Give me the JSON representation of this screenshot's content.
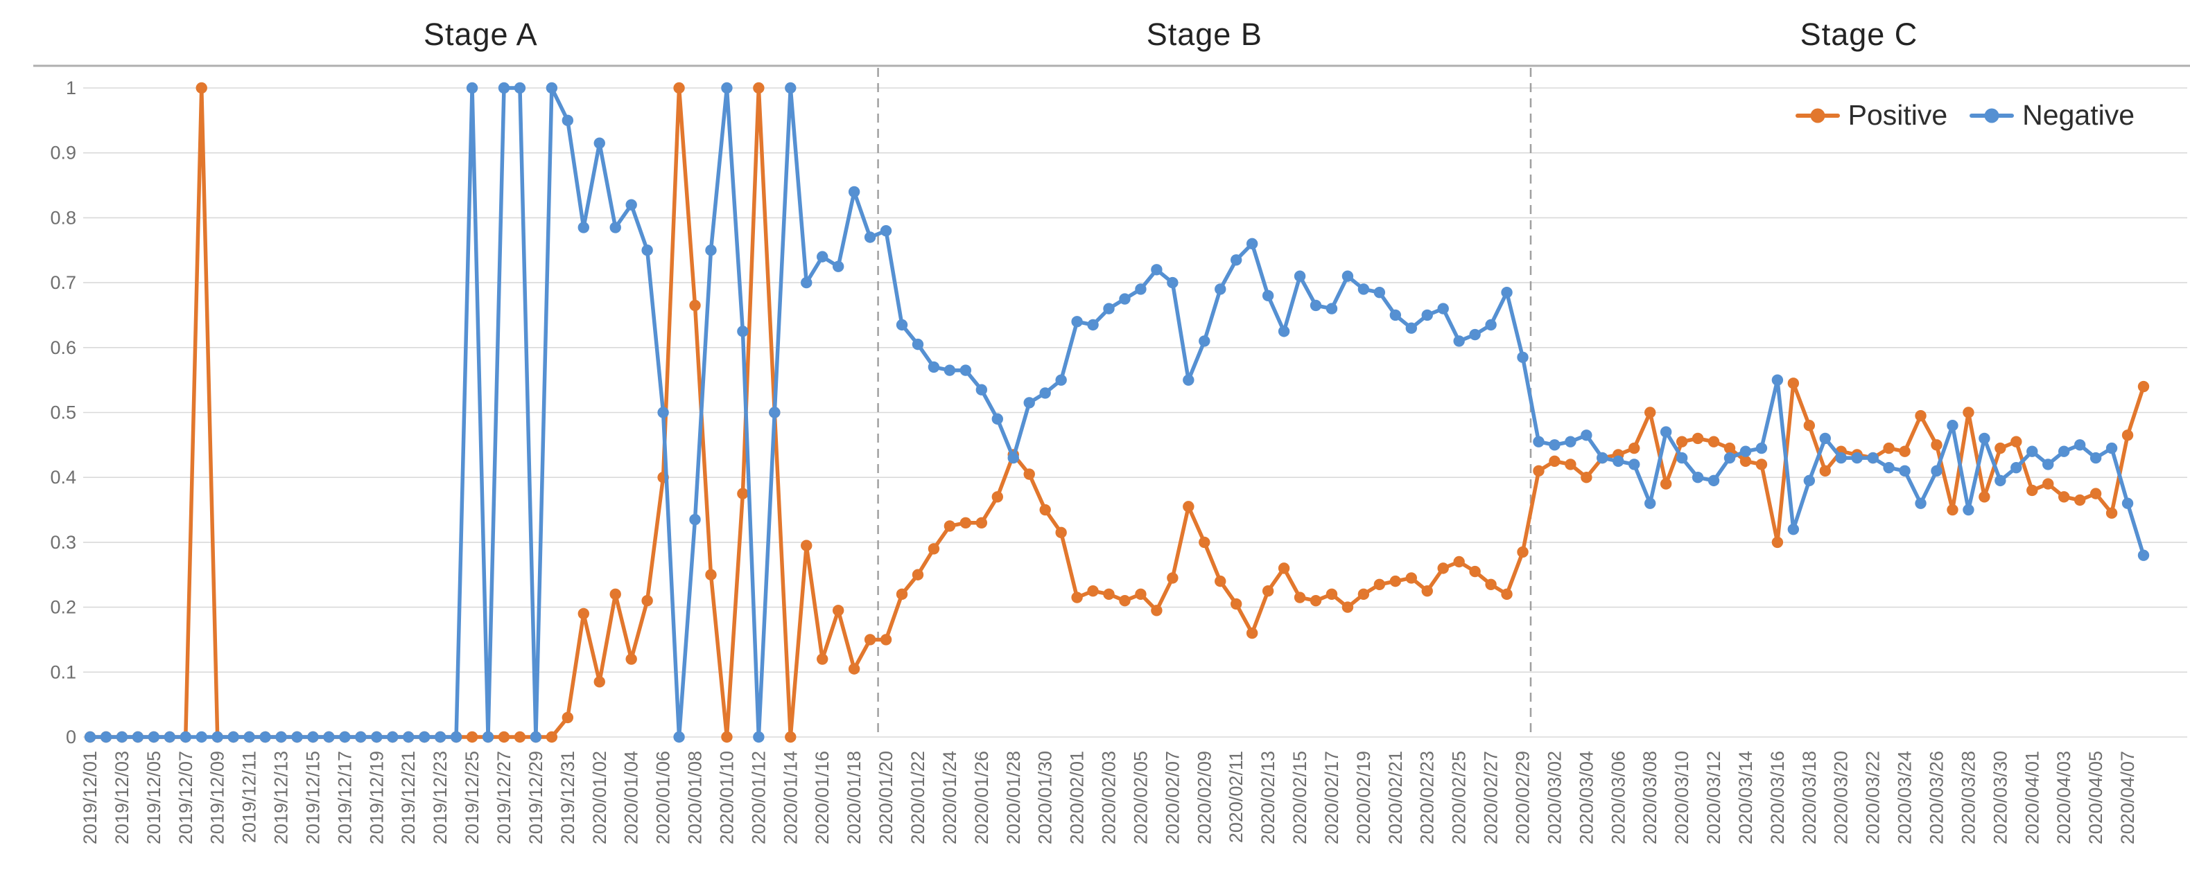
{
  "chart_data": {
    "type": "line",
    "title": "",
    "xlabel": "",
    "ylabel": "",
    "ylim": [
      0,
      1
    ],
    "grid": true,
    "legend_position": "top-right-inside",
    "y_ticks": [
      "0",
      "0.1",
      "0.2",
      "0.3",
      "0.4",
      "0.5",
      "0.6",
      "0.7",
      "0.8",
      "0.9",
      "1"
    ],
    "x_label_every": 2,
    "stages": [
      {
        "label": "Stage A"
      },
      {
        "label": "Stage B"
      },
      {
        "label": "Stage C"
      }
    ],
    "stage_dividers_after": [
      "2020/01/19",
      "2020/02/29"
    ],
    "style": {
      "grid_color": "#D9D9D9",
      "top_border_color": "#AFAFAF",
      "divider_color": "#A0A0A0",
      "tick_text_color": "#6F6F6F",
      "stage_text_color": "#232323",
      "legend_text_color": "#2D2D2D",
      "background": "#FFFFFF"
    },
    "categories": [
      "2019/12/01",
      "2019/12/02",
      "2019/12/03",
      "2019/12/04",
      "2019/12/05",
      "2019/12/06",
      "2019/12/07",
      "2019/12/08",
      "2019/12/09",
      "2019/12/10",
      "2019/12/11",
      "2019/12/12",
      "2019/12/13",
      "2019/12/14",
      "2019/12/15",
      "2019/12/16",
      "2019/12/17",
      "2019/12/18",
      "2019/12/19",
      "2019/12/20",
      "2019/12/21",
      "2019/12/22",
      "2019/12/23",
      "2019/12/24",
      "2019/12/25",
      "2019/12/26",
      "2019/12/27",
      "2019/12/28",
      "2019/12/29",
      "2019/12/30",
      "2019/12/31",
      "2020/01/01",
      "2020/01/02",
      "2020/01/03",
      "2020/01/04",
      "2020/01/05",
      "2020/01/06",
      "2020/01/07",
      "2020/01/08",
      "2020/01/09",
      "2020/01/10",
      "2020/01/11",
      "2020/01/12",
      "2020/01/13",
      "2020/01/14",
      "2020/01/15",
      "2020/01/16",
      "2020/01/17",
      "2020/01/18",
      "2020/01/19",
      "2020/01/20",
      "2020/01/21",
      "2020/01/22",
      "2020/01/23",
      "2020/01/24",
      "2020/01/25",
      "2020/01/26",
      "2020/01/27",
      "2020/01/28",
      "2020/01/29",
      "2020/01/30",
      "2020/01/31",
      "2020/02/01",
      "2020/02/02",
      "2020/02/03",
      "2020/02/04",
      "2020/02/05",
      "2020/02/06",
      "2020/02/07",
      "2020/02/08",
      "2020/02/09",
      "2020/02/10",
      "2020/02/11",
      "2020/02/12",
      "2020/02/13",
      "2020/02/14",
      "2020/02/15",
      "2020/02/16",
      "2020/02/17",
      "2020/02/18",
      "2020/02/19",
      "2020/02/20",
      "2020/02/21",
      "2020/02/22",
      "2020/02/23",
      "2020/02/24",
      "2020/02/25",
      "2020/02/26",
      "2020/02/27",
      "2020/02/28",
      "2020/02/29",
      "2020/03/01",
      "2020/03/02",
      "2020/03/03",
      "2020/03/04",
      "2020/03/05",
      "2020/03/06",
      "2020/03/07",
      "2020/03/08",
      "2020/03/09",
      "2020/03/10",
      "2020/03/11",
      "2020/03/12",
      "2020/03/13",
      "2020/03/14",
      "2020/03/15",
      "2020/03/16",
      "2020/03/17",
      "2020/03/18",
      "2020/03/19",
      "2020/03/20",
      "2020/03/21",
      "2020/03/22",
      "2020/03/23",
      "2020/03/24",
      "2020/03/25",
      "2020/03/26",
      "2020/03/27",
      "2020/03/28",
      "2020/03/29",
      "2020/03/30",
      "2020/03/31",
      "2020/04/01",
      "2020/04/02",
      "2020/04/03",
      "2020/04/04",
      "2020/04/05",
      "2020/04/06",
      "2020/04/07",
      "2020/04/08"
    ],
    "series": [
      {
        "name": "Positive",
        "color": "#E2772D",
        "values": [
          0,
          0,
          0,
          0,
          0,
          0,
          0,
          1,
          0,
          0,
          0,
          0,
          0,
          0,
          0,
          0,
          0,
          0,
          0,
          0,
          0,
          0,
          0,
          0,
          0,
          0,
          0,
          0,
          0,
          0,
          0.03,
          0.19,
          0.085,
          0.22,
          0.12,
          0.21,
          0.4,
          1,
          0.665,
          0.25,
          0,
          0.375,
          1,
          0.5,
          0,
          0.295,
          0.12,
          0.195,
          0.105,
          0.15,
          0.15,
          0.22,
          0.25,
          0.29,
          0.325,
          0.33,
          0.33,
          0.37,
          0.435,
          0.405,
          0.35,
          0.315,
          0.215,
          0.225,
          0.22,
          0.21,
          0.22,
          0.195,
          0.245,
          0.355,
          0.3,
          0.24,
          0.205,
          0.16,
          0.225,
          0.26,
          0.215,
          0.21,
          0.22,
          0.2,
          0.22,
          0.235,
          0.24,
          0.245,
          0.225,
          0.26,
          0.27,
          0.255,
          0.235,
          0.22,
          0.285,
          0.41,
          0.425,
          0.42,
          0.4,
          0.43,
          0.435,
          0.445,
          0.5,
          0.39,
          0.455,
          0.46,
          0.455,
          0.445,
          0.425,
          0.42,
          0.3,
          0.545,
          0.48,
          0.41,
          0.44,
          0.435,
          0.43,
          0.445,
          0.44,
          0.495,
          0.45,
          0.35,
          0.5,
          0.37,
          0.445,
          0.455,
          0.38,
          0.39,
          0.37,
          0.365,
          0.375,
          0.345,
          0.465,
          0.54
        ]
      },
      {
        "name": "Negative",
        "color": "#5590D2",
        "values": [
          0,
          0,
          0,
          0,
          0,
          0,
          0,
          0,
          0,
          0,
          0,
          0,
          0,
          0,
          0,
          0,
          0,
          0,
          0,
          0,
          0,
          0,
          0,
          0,
          1,
          0,
          1,
          1,
          0,
          1,
          0.95,
          0.785,
          0.915,
          0.785,
          0.82,
          0.75,
          0.5,
          0,
          0.335,
          0.75,
          1,
          0.625,
          0,
          0.5,
          1,
          0.7,
          0.74,
          0.725,
          0.84,
          0.77,
          0.78,
          0.635,
          0.605,
          0.57,
          0.565,
          0.565,
          0.535,
          0.49,
          0.43,
          0.515,
          0.53,
          0.55,
          0.64,
          0.635,
          0.66,
          0.675,
          0.69,
          0.72,
          0.7,
          0.55,
          0.61,
          0.69,
          0.735,
          0.76,
          0.68,
          0.625,
          0.71,
          0.665,
          0.66,
          0.71,
          0.69,
          0.685,
          0.65,
          0.63,
          0.65,
          0.66,
          0.61,
          0.62,
          0.635,
          0.685,
          0.585,
          0.455,
          0.45,
          0.455,
          0.465,
          0.43,
          0.425,
          0.42,
          0.36,
          0.47,
          0.43,
          0.4,
          0.395,
          0.43,
          0.44,
          0.445,
          0.55,
          0.32,
          0.395,
          0.46,
          0.43,
          0.43,
          0.43,
          0.415,
          0.41,
          0.36,
          0.41,
          0.48,
          0.35,
          0.46,
          0.395,
          0.415,
          0.44,
          0.42,
          0.44,
          0.45,
          0.43,
          0.445,
          0.36,
          0.28
        ]
      }
    ]
  }
}
